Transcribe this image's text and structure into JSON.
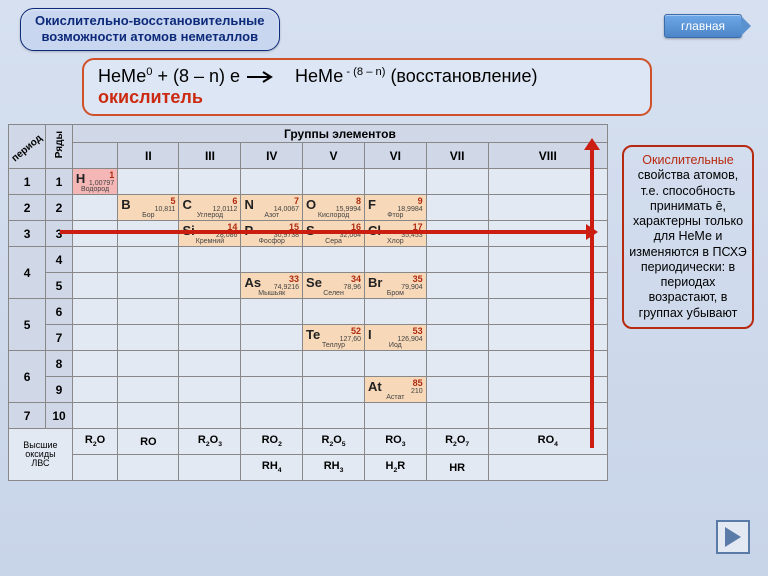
{
  "title_line1": "Окислительно-восстановительные",
  "title_line2": "возможности атомов неметаллов",
  "home_label": "главная",
  "equation": {
    "lhs_base": "НеМе",
    "lhs_sup": "0",
    "plus": " + (8 – n) e",
    "rhs_base": "НеМе",
    "rhs_sup": " - (8 – n)",
    "rhs_tail": " (восстановление)",
    "oxidizer": "окислитель"
  },
  "groups_header": "Группы элементов",
  "period_header": "период",
  "rows_header": "Ряды",
  "group_labels": [
    "II",
    "III",
    "IV",
    "V",
    "VI",
    "VII",
    "VIII"
  ],
  "periods": [
    "1",
    "2",
    "3",
    "4",
    "4",
    "5",
    "5",
    "6",
    "6",
    "7"
  ],
  "row_nums": [
    "1",
    "2",
    "3",
    "4",
    "5",
    "6",
    "7",
    "8",
    "9",
    "10"
  ],
  "elements": {
    "H": {
      "sym": "H",
      "num": "1",
      "mass": "1,00797",
      "name": "Водород",
      "row": 0,
      "col": 0,
      "klass": "h"
    },
    "B": {
      "sym": "B",
      "num": "5",
      "mass": "10,811",
      "name": "Бор",
      "row": 1,
      "col": 1
    },
    "C": {
      "sym": "C",
      "num": "6",
      "mass": "12,0112",
      "name": "Углерод",
      "row": 1,
      "col": 2
    },
    "N": {
      "sym": "N",
      "num": "7",
      "mass": "14,0067",
      "name": "Азот",
      "row": 1,
      "col": 3
    },
    "O": {
      "sym": "O",
      "num": "8",
      "mass": "15,9994",
      "name": "Кислород",
      "row": 1,
      "col": 4
    },
    "F": {
      "sym": "F",
      "num": "9",
      "mass": "18,9984",
      "name": "Фтор",
      "row": 1,
      "col": 5
    },
    "Si": {
      "sym": "Si",
      "num": "14",
      "mass": "28,086",
      "name": "Кремний",
      "row": 2,
      "col": 2
    },
    "P": {
      "sym": "P",
      "num": "15",
      "mass": "30,9738",
      "name": "Фосфор",
      "row": 2,
      "col": 3
    },
    "S": {
      "sym": "S",
      "num": "16",
      "mass": "32,064",
      "name": "Сера",
      "row": 2,
      "col": 4
    },
    "Cl": {
      "sym": "Cl",
      "num": "17",
      "mass": "35,453",
      "name": "Хлор",
      "row": 2,
      "col": 5
    },
    "As": {
      "sym": "As",
      "num": "33",
      "mass": "74,9216",
      "name": "Мышьяк",
      "row": 4,
      "col": 3
    },
    "Se": {
      "sym": "Se",
      "num": "34",
      "mass": "78,96",
      "name": "Селен",
      "row": 4,
      "col": 4
    },
    "Br": {
      "sym": "Br",
      "num": "35",
      "mass": "79,904",
      "name": "Бром",
      "row": 4,
      "col": 5
    },
    "Te": {
      "sym": "Te",
      "num": "52",
      "mass": "127,60",
      "name": "Теллур",
      "row": 6,
      "col": 4
    },
    "I": {
      "sym": "I",
      "num": "53",
      "mass": "126,904",
      "name": "Иод",
      "row": 6,
      "col": 5
    },
    "At": {
      "sym": "At",
      "num": "85",
      "mass": "210",
      "name": "Астат",
      "row": 8,
      "col": 5
    }
  },
  "oxide_label": "Высшие оксиды",
  "oxides": [
    "R₂O",
    "RO",
    "R₂O₃",
    "RO₂",
    "R₂O₅",
    "RO₃",
    "R₂O₇",
    "RO₄"
  ],
  "lvs_label": "ЛВС",
  "lvs": [
    "",
    "",
    "",
    "RH₄",
    "RH₃",
    "H₂R",
    "HR",
    ""
  ],
  "info": {
    "l1_red": "Окислительные",
    "body": "свойства атомов, т.е. способность принимать ē, характерны только для НеМе и изменяются в ПСХЭ периодически: в периодах возрастают, в группах убывают"
  },
  "colors": {
    "accent_red": "#cc1e10",
    "element_bg": "#f7d8b8",
    "hydrogen_bg": "#f5b6b6",
    "border_blue": "#0d2a7a"
  }
}
